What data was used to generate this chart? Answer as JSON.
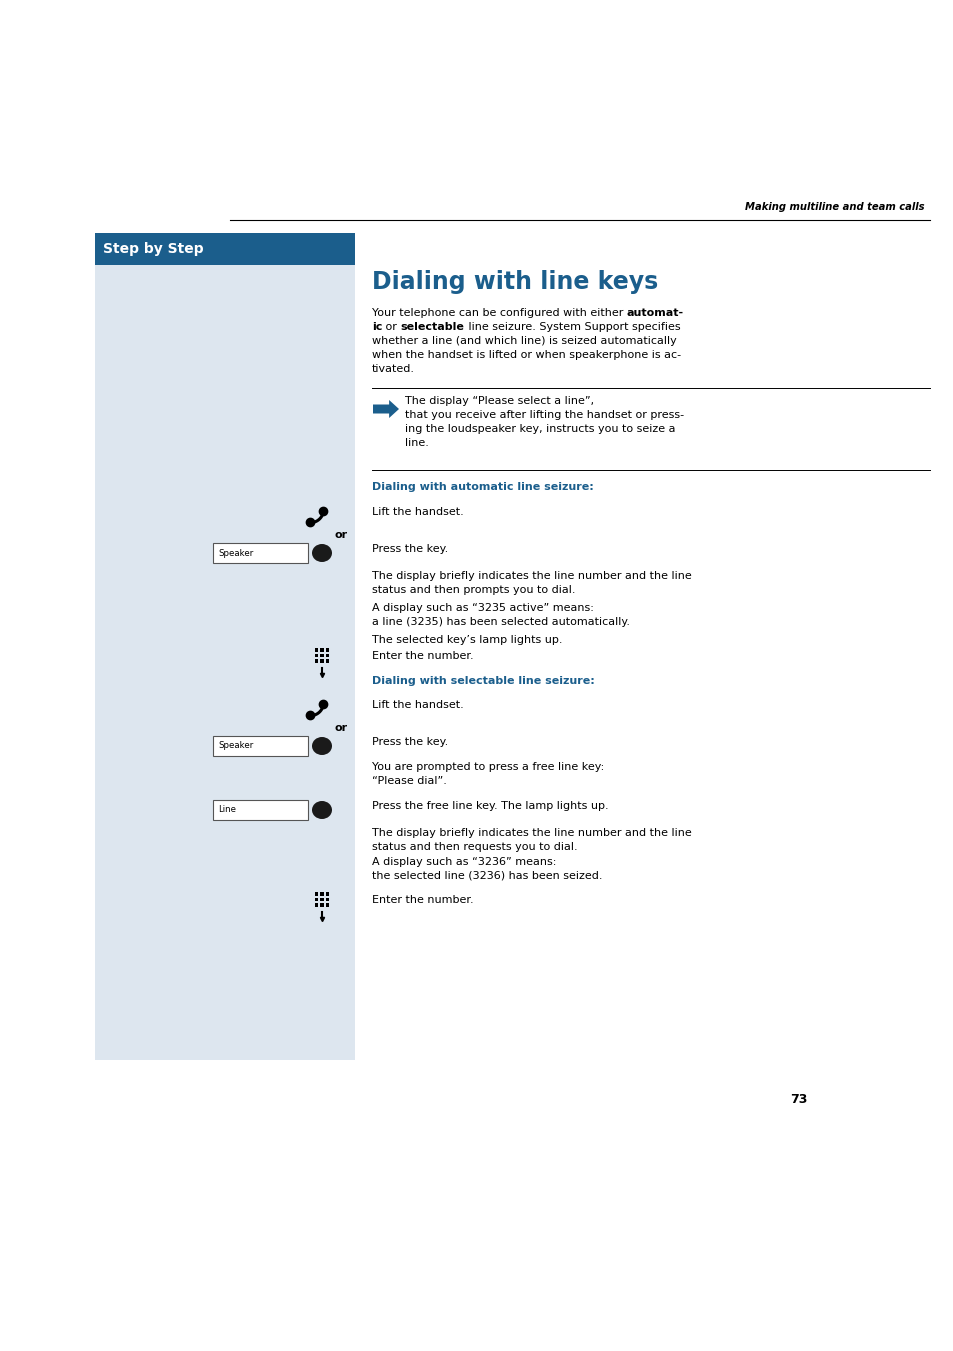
{
  "page_bg": "#ffffff",
  "header_text": "Making multiline and team calls",
  "header_color": "#000000",
  "step_by_step_bg": "#1b5e8c",
  "step_by_step_text": "Step by Step",
  "step_by_step_text_color": "#ffffff",
  "left_panel_bg": "#dde6ef",
  "title": "Dialing with line keys",
  "title_color": "#1b5e8c",
  "body_color": "#000000",
  "subhead_color": "#1b5e8c",
  "page_number": "73",
  "auto_heading": "Dialing with automatic line seizure:",
  "sel_heading": "Dialing with selectable line seizure:"
}
